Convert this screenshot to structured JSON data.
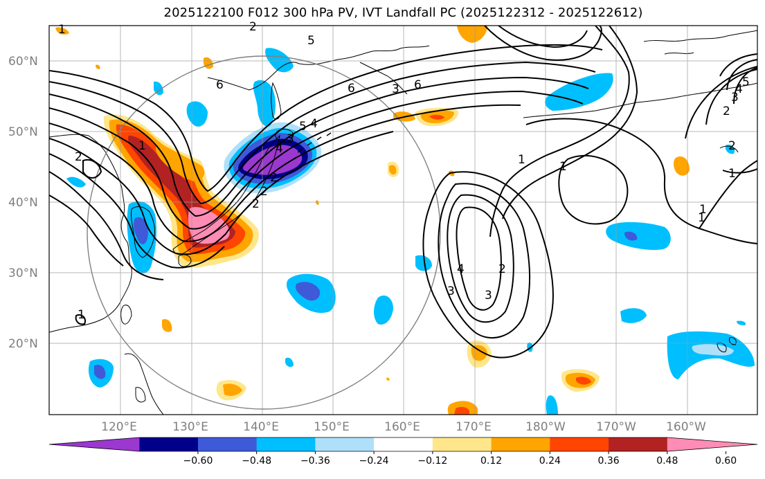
{
  "title": "2025122100 F012 300 hPa PV, IVT Landfall PC (2025122312 - 2025122612)",
  "lat_labels": [
    "60°N",
    "50°N",
    "40°N",
    "30°N",
    "20°N"
  ],
  "lon_labels": [
    "120°E",
    "130°E",
    "140°E",
    "150°E",
    "160°E",
    "170°E",
    "180°W",
    "170°W",
    "160°W"
  ],
  "colorbar": {
    "ticks": [
      "−0.60",
      "−0.48",
      "−0.36",
      "−0.24",
      "−0.12",
      "0.12",
      "0.24",
      "0.36",
      "0.48",
      "0.60"
    ],
    "colors": [
      "#9b38cf",
      "#00008b",
      "#3f5ad8",
      "#00bfff",
      "#afe0fa",
      "#ffffff",
      "#ffe68a",
      "#ffa500",
      "#ff4500",
      "#b22222",
      "#ff8cb4"
    ]
  },
  "contour_labels": [
    "5",
    "6",
    "6",
    "2",
    "1",
    "6",
    "5",
    "4",
    "3",
    "2",
    "1",
    "1",
    "1",
    "1",
    "2",
    "3",
    "4",
    "4",
    "3",
    "2",
    "1",
    "2",
    "1",
    "5",
    "4",
    "3",
    "2",
    "2",
    "1",
    "2",
    "3"
  ]
}
